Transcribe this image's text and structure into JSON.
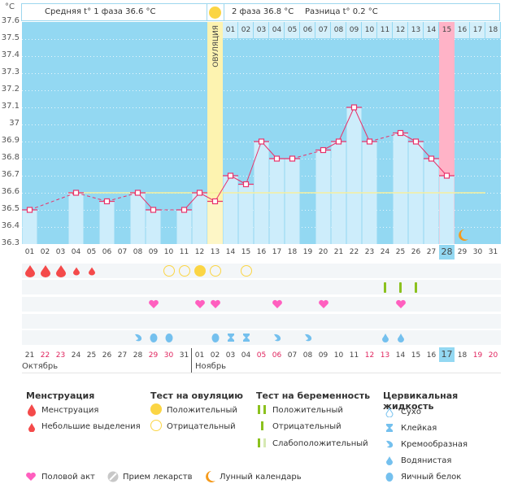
{
  "header": {
    "unit": "°C",
    "phase1": "Средняя t° 1 фаза 36.6 °C",
    "phase2": "2 фаза 36.8 °C",
    "difference": "Разница t° 0.2 °C",
    "ovulation_label": "ОВУЛЯЦИЯ"
  },
  "colors": {
    "plot_bg": "#93d8f2",
    "bar": "#cdedfb",
    "line": "#e8336b",
    "ovulation": "#fdf3b0",
    "period_day": "#ffb3c7",
    "coverline": "#f6ef9e",
    "weekend": "#e0245e",
    "today": "#93d8f2"
  },
  "chart_data": {
    "type": "line",
    "title": "",
    "ylabel": "°C",
    "ylim": [
      36.3,
      37.6
    ],
    "yticks": [
      "37.6",
      "37.5",
      "37.4",
      "37.3",
      "37.2",
      "37.1",
      "37",
      "36.9",
      "36.8",
      "36.7",
      "36.6",
      "36.5",
      "36.4",
      "36.3"
    ],
    "cycle_days": [
      "01",
      "02",
      "03",
      "04",
      "05",
      "06",
      "07",
      "08",
      "09",
      "10",
      "11",
      "12",
      "13",
      "14",
      "15",
      "16",
      "17",
      "18",
      "19",
      "20",
      "21",
      "22",
      "23",
      "24",
      "25",
      "26",
      "27",
      "28",
      "29",
      "30",
      "31"
    ],
    "temps": [
      36.5,
      null,
      null,
      36.6,
      null,
      36.55,
      null,
      36.6,
      36.5,
      null,
      36.5,
      36.6,
      36.55,
      36.7,
      36.65,
      36.9,
      36.8,
      36.8,
      null,
      36.85,
      36.9,
      37.1,
      36.9,
      null,
      36.95,
      36.9,
      36.8,
      36.7,
      null,
      null,
      null
    ],
    "coverline": 36.6,
    "ovulation_day": 13,
    "current_day": 28,
    "luteal_days": [
      "01",
      "02",
      "03",
      "04",
      "05",
      "06",
      "07",
      "08",
      "09",
      "10",
      "11",
      "12",
      "13",
      "14",
      "15",
      "16",
      "17",
      "18"
    ],
    "luteal_highlight": "15",
    "moon_day": 29
  },
  "calendar": {
    "dates": [
      "21",
      "22",
      "23",
      "24",
      "25",
      "26",
      "27",
      "28",
      "29",
      "30",
      "31",
      "01",
      "02",
      "03",
      "04",
      "05",
      "06",
      "07",
      "08",
      "09",
      "10",
      "11",
      "12",
      "13",
      "14",
      "15",
      "16",
      "17",
      "18",
      "19",
      "20"
    ],
    "weekend": [
      false,
      true,
      true,
      false,
      false,
      false,
      false,
      false,
      true,
      true,
      false,
      false,
      false,
      false,
      false,
      true,
      true,
      false,
      false,
      false,
      false,
      false,
      true,
      true,
      false,
      false,
      false,
      false,
      false,
      true,
      true
    ],
    "today_index": 27,
    "months": [
      {
        "label": "Октябрь"
      },
      {
        "label": "Ноябрь"
      }
    ]
  },
  "markers": {
    "menstruation": [
      "heavy",
      "heavy",
      "heavy",
      "light",
      "light",
      null,
      null,
      null,
      null,
      null,
      null,
      null,
      null,
      null,
      null,
      null,
      null,
      null,
      null,
      null,
      null,
      null,
      null,
      null,
      null,
      null,
      null,
      null,
      null,
      null,
      null
    ],
    "ovulation_test": [
      null,
      null,
      null,
      null,
      null,
      null,
      null,
      null,
      null,
      "neg",
      "neg",
      "pos",
      "neg",
      null,
      "neg",
      null,
      null,
      null,
      null,
      null,
      null,
      null,
      null,
      null,
      null,
      null,
      null,
      null,
      null,
      null,
      null
    ],
    "pregnancy_test": [
      null,
      null,
      null,
      null,
      null,
      null,
      null,
      null,
      null,
      null,
      null,
      null,
      null,
      null,
      null,
      null,
      null,
      null,
      null,
      null,
      null,
      null,
      null,
      "neg",
      "neg",
      "neg",
      null,
      null,
      null,
      null,
      null
    ],
    "intercourse": [
      false,
      false,
      false,
      false,
      false,
      false,
      false,
      false,
      true,
      false,
      false,
      true,
      true,
      false,
      false,
      false,
      true,
      false,
      false,
      true,
      false,
      false,
      false,
      false,
      true,
      false,
      false,
      false,
      false,
      false,
      false
    ],
    "cervical": [
      null,
      null,
      null,
      null,
      null,
      null,
      null,
      "creamy",
      "egg",
      "egg",
      null,
      null,
      "egg",
      "sticky",
      "sticky",
      null,
      "creamy",
      null,
      "creamy",
      null,
      null,
      null,
      null,
      "watery",
      "watery",
      null,
      null,
      null,
      null,
      null,
      null
    ]
  },
  "legend": {
    "menstruation": {
      "title": "Менструация",
      "items": [
        "Менструация",
        "Небольшие выделения"
      ]
    },
    "ovulation_test": {
      "title": "Тест на овуляцию",
      "items": [
        "Положительный",
        "Отрицательный"
      ]
    },
    "pregnancy_test": {
      "title": "Тест на беременность",
      "items": [
        "Положительный",
        "Отрицательный",
        "Слабоположительный"
      ]
    },
    "cervical": {
      "title": "Цервикальная жидкость",
      "items": [
        "Сухо",
        "Клейкая",
        "Кремообразная",
        "Водянистая",
        "Яичный белок"
      ]
    },
    "other": [
      "Половой акт",
      "Прием лекарств",
      "Лунный календарь"
    ]
  }
}
